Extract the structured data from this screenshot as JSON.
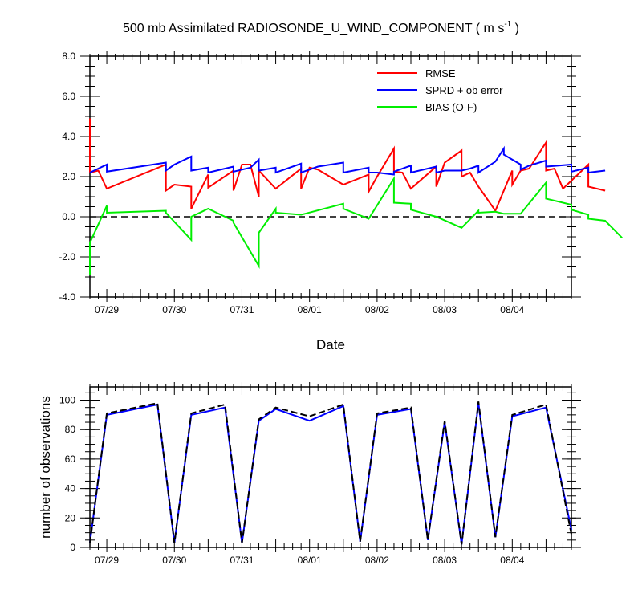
{
  "title_main": "500 mb Assimilated RADIOSONDE_U_WIND_COMPONENT ( m s",
  "title_exp": "-1",
  "title_end": " )",
  "chart_data": [
    {
      "type": "line",
      "xlabel": "Date",
      "ylabel": "",
      "xlim": [
        "07/28 18Z",
        "08/04 21Z"
      ],
      "ylim": [
        -4,
        8
      ],
      "ytick_labels": [
        "-4.0",
        "-2.0",
        "0.0",
        "2.0",
        "4.0",
        "6.0",
        "8.0"
      ],
      "xtick_labels": [
        "07/29",
        "07/30",
        "07/31",
        "08/01",
        "08/02",
        "08/03",
        "08/04"
      ],
      "legend_position": "top-right",
      "zero_line": true,
      "colors": {
        "rmse": "#ff0000",
        "sprd": "#0000ff",
        "bias": "#00ee00"
      },
      "series": [
        {
          "name": "RMSE",
          "color": "#ff0000",
          "points": [
            [
              "07/28 18Z",
              4.9
            ],
            [
              "07/28 18Z",
              2.2
            ],
            [
              "07/28 21Z",
              2.3
            ],
            [
              "07/29 00Z",
              1.4
            ],
            [
              "07/29 21Z",
              2.6
            ],
            [
              "07/29 21Z",
              1.3
            ],
            [
              "07/30 00Z",
              1.6
            ],
            [
              "07/30 06Z",
              1.5
            ],
            [
              "07/30 06Z",
              0.4
            ],
            [
              "07/30 12Z",
              2.1
            ],
            [
              "07/30 12Z",
              1.45
            ],
            [
              "07/30 21Z",
              2.3
            ],
            [
              "07/30 21Z",
              1.3
            ],
            [
              "07/31 00Z",
              2.6
            ],
            [
              "07/31 03Z",
              2.6
            ],
            [
              "07/31 06Z",
              1.0
            ],
            [
              "07/31 06Z",
              2.3
            ],
            [
              "07/31 12Z",
              1.4
            ],
            [
              "07/31 21Z",
              2.4
            ],
            [
              "07/31 21Z",
              1.4
            ],
            [
              "08/01 00Z",
              2.45
            ],
            [
              "08/01 03Z",
              2.35
            ],
            [
              "08/01 12Z",
              1.6
            ],
            [
              "08/01 21Z",
              2.1
            ],
            [
              "08/01 21Z",
              1.25
            ],
            [
              "08/02 00Z",
              2.0
            ],
            [
              "08/02 06Z",
              3.4
            ],
            [
              "08/02 06Z",
              2.25
            ],
            [
              "08/02 09Z",
              2.2
            ],
            [
              "08/02 12Z",
              1.4
            ],
            [
              "08/02 21Z",
              2.5
            ],
            [
              "08/02 21Z",
              1.5
            ],
            [
              "08/03 00Z",
              2.7
            ],
            [
              "08/03 06Z",
              3.3
            ],
            [
              "08/03 06Z",
              2.0
            ],
            [
              "08/03 09Z",
              2.2
            ],
            [
              "08/03 12Z",
              1.5
            ],
            [
              "08/03 18Z",
              0.3
            ],
            [
              "08/04 00Z",
              2.3
            ],
            [
              "08/04 00Z",
              1.6
            ],
            [
              "08/04 03Z",
              2.3
            ],
            [
              "08/04 06Z",
              2.4
            ],
            [
              "08/04 12Z",
              3.7
            ],
            [
              "08/04 12Z",
              2.3
            ],
            [
              "08/04 15Z",
              2.4
            ],
            [
              "08/04 18Z",
              1.4
            ],
            [
              "08/05 03Z",
              2.6
            ],
            [
              "08/05 03Z",
              1.5
            ],
            [
              "08/05 09Z",
              1.3
            ]
          ]
        },
        {
          "name": "SPRD + ob error",
          "color": "#0000ff",
          "points": [
            [
              "07/28 18Z",
              2.2
            ],
            [
              "07/28 21Z",
              2.4
            ],
            [
              "07/29 00Z",
              2.6
            ],
            [
              "07/29 00Z",
              2.25
            ],
            [
              "07/29 21Z",
              2.7
            ],
            [
              "07/29 21Z",
              2.3
            ],
            [
              "07/30 00Z",
              2.6
            ],
            [
              "07/30 06Z",
              3.0
            ],
            [
              "07/30 06Z",
              2.3
            ],
            [
              "07/30 12Z",
              2.45
            ],
            [
              "07/30 12Z",
              2.2
            ],
            [
              "07/30 21Z",
              2.5
            ],
            [
              "07/30 21Z",
              2.25
            ],
            [
              "07/31 00Z",
              2.35
            ],
            [
              "07/31 03Z",
              2.45
            ],
            [
              "07/31 06Z",
              2.85
            ],
            [
              "07/31 06Z",
              2.3
            ],
            [
              "07/31 12Z",
              2.45
            ],
            [
              "07/31 12Z",
              2.2
            ],
            [
              "07/31 21Z",
              2.65
            ],
            [
              "07/31 21Z",
              2.2
            ],
            [
              "08/01 03Z",
              2.5
            ],
            [
              "08/01 12Z",
              2.7
            ],
            [
              "08/01 12Z",
              2.2
            ],
            [
              "08/01 21Z",
              2.45
            ],
            [
              "08/01 21Z",
              2.2
            ],
            [
              "08/02 00Z",
              2.2
            ],
            [
              "08/02 06Z",
              2.1
            ],
            [
              "08/02 06Z",
              2.25
            ],
            [
              "08/02 12Z",
              2.55
            ],
            [
              "08/02 12Z",
              2.2
            ],
            [
              "08/02 21Z",
              2.5
            ],
            [
              "08/02 21Z",
              2.2
            ],
            [
              "08/03 00Z",
              2.3
            ],
            [
              "08/03 06Z",
              2.3
            ],
            [
              "08/03 09Z",
              2.4
            ],
            [
              "08/03 12Z",
              2.55
            ],
            [
              "08/03 12Z",
              2.2
            ],
            [
              "08/03 18Z",
              2.75
            ],
            [
              "08/03 21Z",
              3.4
            ],
            [
              "08/03 21Z",
              3.1
            ],
            [
              "08/04 03Z",
              2.6
            ],
            [
              "08/04 03Z",
              2.35
            ],
            [
              "08/04 06Z",
              2.55
            ],
            [
              "08/04 12Z",
              2.8
            ],
            [
              "08/04 12Z",
              2.5
            ],
            [
              "08/04 21Z",
              2.6
            ],
            [
              "08/04 21Z",
              2.25
            ],
            [
              "08/05 03Z",
              2.45
            ],
            [
              "08/05 03Z",
              2.2
            ],
            [
              "08/05 09Z",
              2.3
            ]
          ]
        },
        {
          "name": "BIAS (O-F)",
          "color": "#00ee00",
          "points": [
            [
              "07/28 18Z",
              -2.9
            ],
            [
              "07/28 18Z",
              -1.3
            ],
            [
              "07/29 00Z",
              0.55
            ],
            [
              "07/29 00Z",
              0.2
            ],
            [
              "07/29 21Z",
              0.3
            ],
            [
              "07/29 21Z",
              0.2
            ],
            [
              "07/30 06Z",
              -1.15
            ],
            [
              "07/30 06Z",
              0.0
            ],
            [
              "07/30 12Z",
              0.4
            ],
            [
              "07/30 21Z",
              -0.2
            ],
            [
              "07/30 21Z",
              -0.3
            ],
            [
              "07/31 06Z",
              -2.45
            ],
            [
              "07/31 06Z",
              -0.8
            ],
            [
              "07/31 12Z",
              0.4
            ],
            [
              "07/31 12Z",
              0.2
            ],
            [
              "07/31 21Z",
              0.1
            ],
            [
              "08/01 12Z",
              0.65
            ],
            [
              "08/01 12Z",
              0.4
            ],
            [
              "08/01 21Z",
              -0.1
            ],
            [
              "08/02 06Z",
              1.9
            ],
            [
              "08/02 06Z",
              0.7
            ],
            [
              "08/02 12Z",
              0.65
            ],
            [
              "08/02 12Z",
              0.35
            ],
            [
              "08/02 21Z",
              0.0
            ],
            [
              "08/03 06Z",
              -0.55
            ],
            [
              "08/03 12Z",
              0.3
            ],
            [
              "08/03 12Z",
              0.2
            ],
            [
              "08/03 18Z",
              0.25
            ],
            [
              "08/03 21Z",
              0.15
            ],
            [
              "08/04 03Z",
              0.15
            ],
            [
              "08/04 12Z",
              1.7
            ],
            [
              "08/04 12Z",
              0.9
            ],
            [
              "08/04 21Z",
              0.6
            ],
            [
              "08/04 21Z",
              0.35
            ],
            [
              "08/05 03Z",
              0.1
            ],
            [
              "08/05 03Z",
              -0.1
            ],
            [
              "08/05 09Z",
              -0.2
            ],
            [
              "08/05 15Z",
              -1.05
            ]
          ]
        }
      ]
    },
    {
      "type": "line",
      "xlabel": "",
      "ylabel": "number of observations",
      "xlim": [
        "07/28 18Z",
        "08/04 21Z"
      ],
      "ylim": [
        0,
        109
      ],
      "ytick_labels": [
        "0",
        "20",
        "40",
        "60",
        "80",
        "100"
      ],
      "xtick_labels": [
        "07/29",
        "07/30",
        "07/31",
        "08/01",
        "08/02",
        "08/03",
        "08/04"
      ],
      "series": [
        {
          "color": "#0000ff",
          "points": [
            [
              "07/28 18Z",
              3
            ],
            [
              "07/29 00Z",
              90
            ],
            [
              "07/29 18Z",
              97
            ],
            [
              "07/30 00Z",
              3
            ],
            [
              "07/30 06Z",
              90
            ],
            [
              "07/30 18Z",
              95
            ],
            [
              "07/31 00Z",
              3
            ],
            [
              "07/31 06Z",
              86
            ],
            [
              "07/31 12Z",
              94
            ],
            [
              "08/01 00Z",
              86
            ],
            [
              "08/01 12Z",
              96
            ],
            [
              "08/01 18Z",
              4
            ],
            [
              "08/02 00Z",
              90
            ],
            [
              "08/02 12Z",
              94
            ],
            [
              "08/02 18Z",
              5
            ],
            [
              "08/03 00Z",
              85
            ],
            [
              "08/03 06Z",
              2
            ],
            [
              "08/03 12Z",
              98
            ],
            [
              "08/03 18Z",
              7
            ],
            [
              "08/04 00Z",
              89
            ],
            [
              "08/04 12Z",
              95
            ],
            [
              "08/04 21Z",
              12
            ]
          ]
        },
        {
          "color": "#000000",
          "dash": "dashed",
          "points": [
            [
              "07/28 18Z",
              3
            ],
            [
              "07/29 00Z",
              91
            ],
            [
              "07/29 18Z",
              98
            ],
            [
              "07/30 00Z",
              3
            ],
            [
              "07/30 06Z",
              91
            ],
            [
              "07/30 18Z",
              97
            ],
            [
              "07/31 00Z",
              3
            ],
            [
              "07/31 06Z",
              87
            ],
            [
              "07/31 12Z",
              95
            ],
            [
              "08/01 00Z",
              89
            ],
            [
              "08/01 12Z",
              97
            ],
            [
              "08/01 18Z",
              4
            ],
            [
              "08/02 00Z",
              91
            ],
            [
              "08/02 12Z",
              95
            ],
            [
              "08/02 18Z",
              5
            ],
            [
              "08/03 00Z",
              86
            ],
            [
              "08/03 06Z",
              2
            ],
            [
              "08/03 12Z",
              99
            ],
            [
              "08/03 18Z",
              7
            ],
            [
              "08/04 00Z",
              90
            ],
            [
              "08/04 12Z",
              97
            ],
            [
              "08/04 21Z",
              9
            ]
          ]
        }
      ]
    }
  ]
}
